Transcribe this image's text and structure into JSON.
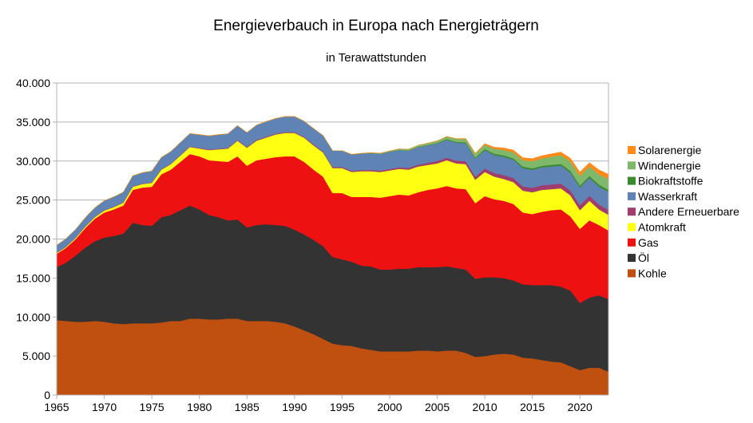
{
  "chart_data": {
    "type": "area",
    "stacked": true,
    "title": "Energieverbauch in Europa nach Energieträgern",
    "subtitle": "in Terawattstunden",
    "xlabel": "",
    "ylabel": "",
    "xlim": [
      1965,
      2023
    ],
    "ylim": [
      0,
      40000
    ],
    "x_ticks": [
      "1965",
      "1970",
      "1975",
      "1980",
      "1985",
      "1990",
      "1995",
      "2000",
      "2005",
      "2010",
      "2015",
      "2020"
    ],
    "y_ticks": [
      "0",
      "5.000",
      "10.000",
      "15.000",
      "20.000",
      "25.000",
      "30.000",
      "35.000",
      "40.000"
    ],
    "grid": "horizontal",
    "legend_position": "right",
    "legend": [
      "Solarenergie",
      "Windenergie",
      "Biokraftstoffe",
      "Wasserkraft",
      "Andere Erneuerbare",
      "Atomkraft",
      "Gas",
      "Öl",
      "Kohle"
    ],
    "x": [
      1965,
      1966,
      1967,
      1968,
      1969,
      1970,
      1971,
      1972,
      1973,
      1974,
      1975,
      1976,
      1977,
      1978,
      1979,
      1980,
      1981,
      1982,
      1983,
      1984,
      1985,
      1986,
      1987,
      1988,
      1989,
      1990,
      1991,
      1992,
      1993,
      1994,
      1995,
      1996,
      1997,
      1998,
      1999,
      2000,
      2001,
      2002,
      2003,
      2004,
      2005,
      2006,
      2007,
      2008,
      2009,
      2010,
      2011,
      2012,
      2013,
      2014,
      2015,
      2016,
      2017,
      2018,
      2019,
      2020,
      2021,
      2022,
      2023
    ],
    "series": [
      {
        "name": "Kohle",
        "color": "#c0500f",
        "values": [
          9600,
          9500,
          9400,
          9400,
          9500,
          9400,
          9200,
          9100,
          9200,
          9200,
          9200,
          9300,
          9500,
          9500,
          9800,
          9800,
          9700,
          9700,
          9800,
          9800,
          9500,
          9500,
          9500,
          9400,
          9200,
          8800,
          8300,
          7800,
          7200,
          6600,
          6400,
          6300,
          6000,
          5800,
          5600,
          5600,
          5600,
          5600,
          5700,
          5700,
          5600,
          5700,
          5700,
          5400,
          4900,
          5000,
          5200,
          5300,
          5200,
          4800,
          4700,
          4500,
          4300,
          4200,
          3700,
          3200,
          3500,
          3500,
          3000
        ]
      },
      {
        "name": "Öl",
        "color": "#333333",
        "values": [
          6800,
          7500,
          8500,
          9500,
          10200,
          10800,
          11200,
          11600,
          12900,
          12600,
          12500,
          13500,
          13600,
          14200,
          14500,
          14000,
          13400,
          13100,
          12600,
          12700,
          12000,
          12300,
          12400,
          12400,
          12500,
          12400,
          12300,
          12100,
          11900,
          11100,
          11000,
          10800,
          10600,
          10700,
          10500,
          10500,
          10600,
          10600,
          10700,
          10700,
          10800,
          10800,
          10600,
          10700,
          10000,
          10100,
          9900,
          9700,
          9500,
          9400,
          9400,
          9600,
          9800,
          9700,
          9700,
          8600,
          9000,
          9300,
          9300
        ]
      },
      {
        "name": "Gas",
        "color": "#ee1111",
        "values": [
          1700,
          1900,
          2100,
          2500,
          2900,
          3200,
          3400,
          3600,
          4200,
          4800,
          5000,
          5500,
          5800,
          6200,
          6600,
          6800,
          7000,
          7200,
          7500,
          8100,
          7900,
          8300,
          8400,
          8700,
          8900,
          9400,
          9300,
          9000,
          8900,
          8200,
          8500,
          8300,
          8800,
          8900,
          9200,
          9400,
          9500,
          9400,
          9600,
          9900,
          10100,
          10300,
          10200,
          10300,
          9700,
          10400,
          10000,
          9900,
          9800,
          9200,
          9100,
          9400,
          9600,
          9900,
          9500,
          9500,
          9900,
          9000,
          8800
        ]
      },
      {
        "name": "Atomkraft",
        "color": "#ffff11",
        "values": [
          100,
          120,
          150,
          180,
          200,
          250,
          300,
          350,
          400,
          450,
          500,
          600,
          700,
          800,
          900,
          1000,
          1300,
          1500,
          1700,
          2000,
          2300,
          2500,
          2700,
          2900,
          3000,
          3000,
          3100,
          3100,
          3100,
          3200,
          3200,
          3200,
          3300,
          3300,
          3300,
          3300,
          3300,
          3300,
          3300,
          3200,
          3200,
          3300,
          3200,
          3200,
          3000,
          3100,
          2900,
          2800,
          2800,
          2800,
          2800,
          2800,
          2700,
          2700,
          2700,
          2400,
          2500,
          2000,
          2000
        ]
      },
      {
        "name": "Andere Erneuerbare",
        "color": "#a03c6e",
        "values": [
          50,
          50,
          50,
          50,
          50,
          60,
          60,
          60,
          60,
          60,
          60,
          70,
          70,
          70,
          70,
          80,
          80,
          80,
          90,
          90,
          100,
          100,
          100,
          100,
          100,
          110,
          110,
          120,
          120,
          130,
          130,
          140,
          150,
          160,
          170,
          180,
          200,
          220,
          240,
          260,
          290,
          320,
          350,
          380,
          400,
          440,
          470,
          500,
          520,
          550,
          570,
          590,
          600,
          610,
          620,
          630,
          640,
          640,
          640
        ]
      },
      {
        "name": "Wasserkraft",
        "color": "#5f83b4",
        "values": [
          950,
          1000,
          1050,
          1100,
          1150,
          1200,
          1250,
          1300,
          1350,
          1400,
          1450,
          1500,
          1550,
          1600,
          1650,
          1700,
          1750,
          1800,
          1800,
          1850,
          1850,
          1900,
          1950,
          1950,
          2000,
          2000,
          2000,
          2050,
          2050,
          2100,
          2100,
          2100,
          2100,
          2150,
          2150,
          2200,
          2200,
          2200,
          2250,
          2250,
          2250,
          2300,
          2300,
          2300,
          2300,
          2350,
          2300,
          2350,
          2350,
          2350,
          2300,
          2300,
          2300,
          2300,
          2300,
          2300,
          2300,
          2300,
          2300
        ]
      },
      {
        "name": "Biokraftstoffe",
        "color": "#3a8a2e",
        "values": [
          0,
          0,
          0,
          0,
          0,
          0,
          0,
          0,
          0,
          0,
          0,
          0,
          0,
          0,
          0,
          0,
          0,
          0,
          0,
          0,
          0,
          0,
          0,
          0,
          0,
          0,
          0,
          0,
          0,
          0,
          0,
          0,
          10,
          10,
          10,
          20,
          20,
          30,
          40,
          50,
          70,
          90,
          110,
          130,
          140,
          160,
          170,
          180,
          180,
          190,
          200,
          200,
          210,
          220,
          230,
          230,
          240,
          250,
          250
        ]
      },
      {
        "name": "Windenergie",
        "color": "#7fb86a",
        "values": [
          0,
          0,
          0,
          0,
          0,
          0,
          0,
          0,
          0,
          0,
          0,
          0,
          0,
          0,
          0,
          0,
          0,
          0,
          0,
          0,
          0,
          0,
          0,
          0,
          0,
          0,
          0,
          0,
          0,
          0,
          0,
          20,
          30,
          50,
          70,
          100,
          130,
          160,
          190,
          230,
          270,
          320,
          380,
          420,
          470,
          530,
          620,
          690,
          760,
          820,
          900,
          940,
          1040,
          1120,
          1180,
          1250,
          1200,
          1300,
          1400
        ]
      },
      {
        "name": "Solarenergie",
        "color": "#ff8a1a",
        "values": [
          0,
          0,
          0,
          0,
          0,
          0,
          0,
          0,
          0,
          0,
          0,
          0,
          0,
          0,
          0,
          0,
          0,
          0,
          0,
          0,
          0,
          0,
          0,
          0,
          0,
          0,
          0,
          0,
          0,
          0,
          0,
          0,
          0,
          0,
          0,
          0,
          0,
          0,
          0,
          0,
          10,
          20,
          40,
          60,
          90,
          150,
          210,
          260,
          300,
          320,
          340,
          350,
          370,
          400,
          430,
          470,
          520,
          580,
          620
        ]
      }
    ]
  }
}
